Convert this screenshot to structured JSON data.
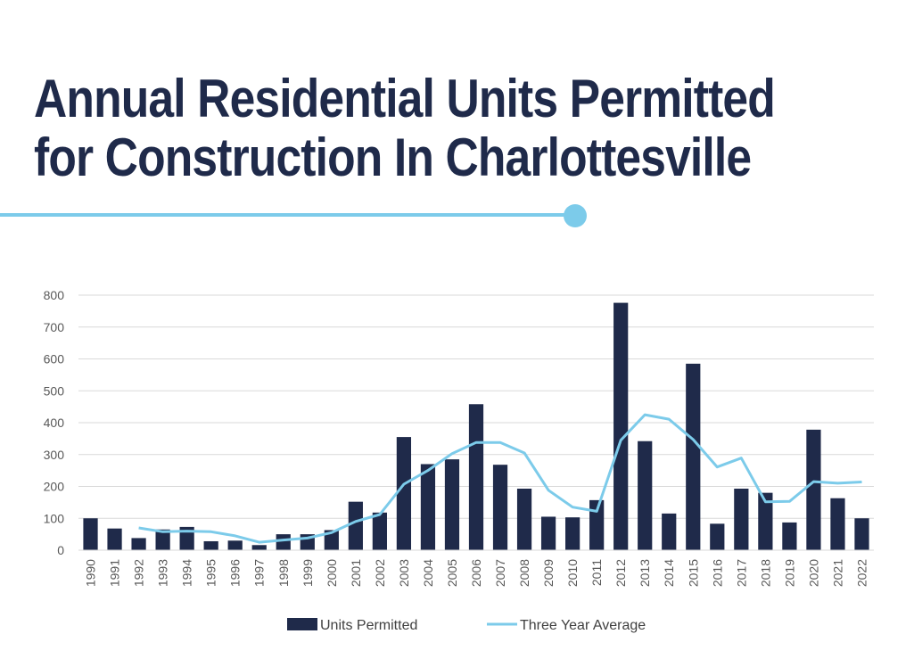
{
  "title": {
    "line1": "Annual Residential Units Permitted",
    "line2": "for Construction In Charlottesville"
  },
  "colors": {
    "title": "#1f2a4a",
    "accent": "#7ccbea",
    "bar": "#1f2a4a",
    "line": "#7ccbea",
    "grid": "#d9d9d9",
    "axis_text": "#595959"
  },
  "chart_data": {
    "type": "bar",
    "categories": [
      "1990",
      "1991",
      "1992",
      "1993",
      "1994",
      "1995",
      "1996",
      "1997",
      "1998",
      "1999",
      "2000",
      "2001",
      "2002",
      "2003",
      "2004",
      "2005",
      "2006",
      "2007",
      "2008",
      "2009",
      "2010",
      "2011",
      "2012",
      "2013",
      "2014",
      "2015",
      "2016",
      "2017",
      "2018",
      "2019",
      "2020",
      "2021",
      "2022"
    ],
    "series": [
      {
        "name": "Units Permitted",
        "type": "bar",
        "values": [
          100,
          68,
          38,
          65,
          73,
          28,
          30,
          16,
          50,
          50,
          63,
          152,
          118,
          355,
          270,
          285,
          458,
          268,
          193,
          105,
          103,
          157,
          776,
          342,
          115,
          585,
          83,
          193,
          180,
          87,
          378,
          163,
          100
        ]
      },
      {
        "name": "Three Year Average",
        "type": "line",
        "values": [
          null,
          null,
          70,
          58,
          60,
          58,
          45,
          25,
          32,
          38,
          55,
          90,
          112,
          207,
          250,
          303,
          338,
          338,
          305,
          188,
          135,
          122,
          345,
          425,
          411,
          347,
          261,
          289,
          152,
          153,
          215,
          210,
          214
        ]
      }
    ],
    "ylim": [
      0,
      800
    ],
    "yticks": [
      0,
      100,
      200,
      300,
      400,
      500,
      600,
      700,
      800
    ],
    "grid": true,
    "legend_position": "bottom"
  }
}
